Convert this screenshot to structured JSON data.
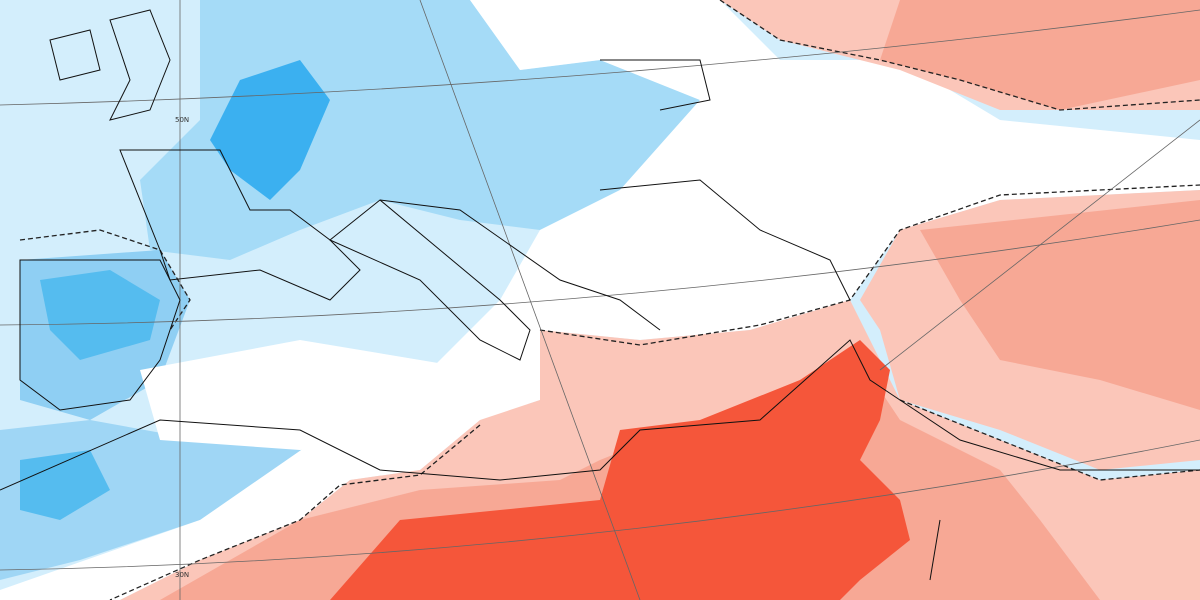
{
  "map": {
    "latitude_labels": [
      "50N",
      "30N"
    ]
  }
}
